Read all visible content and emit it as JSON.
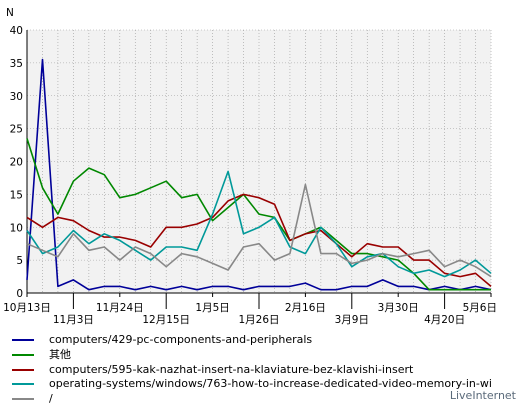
{
  "chart_data": {
    "type": "line",
    "ylabel": "N",
    "ylim": [
      0,
      40
    ],
    "yticks": [
      0,
      5,
      10,
      15,
      20,
      25,
      30,
      35,
      40
    ],
    "grid": true,
    "legend_position": "bottom",
    "x": [
      "10月13日",
      "",
      "",
      "11月3日",
      "",
      "",
      "11月24日",
      "",
      "",
      "12月15日",
      "",
      "",
      "1月5日",
      "",
      "",
      "1月26日",
      "",
      "",
      "2月16日",
      "",
      "",
      "3月9日",
      "",
      "",
      "3月30日",
      "",
      "",
      "4月20日",
      "",
      "",
      "5月6日"
    ],
    "xtick_labels": [
      {
        "index": 0,
        "label": "10月13日",
        "row": 0
      },
      {
        "index": 3,
        "label": "11月3日",
        "row": 1
      },
      {
        "index": 6,
        "label": "11月24日",
        "row": 0
      },
      {
        "index": 9,
        "label": "12月15日",
        "row": 1
      },
      {
        "index": 12,
        "label": "1月5日",
        "row": 0
      },
      {
        "index": 15,
        "label": "1月26日",
        "row": 1
      },
      {
        "index": 18,
        "label": "2月16日",
        "row": 0
      },
      {
        "index": 21,
        "label": "3月9日",
        "row": 1
      },
      {
        "index": 24,
        "label": "3月30日",
        "row": 0
      },
      {
        "index": 27,
        "label": "4月20日",
        "row": 1
      },
      {
        "index": 30,
        "label": "5月6日",
        "row": 0
      }
    ],
    "series": [
      {
        "name": "computers/429-pc-components-and-peripherals",
        "color": "#000099",
        "values": [
          2,
          35.5,
          1,
          2,
          0.5,
          1,
          1,
          0.5,
          1,
          0.5,
          1,
          0.5,
          1,
          1,
          0.5,
          1,
          1,
          1,
          1.5,
          0.5,
          0.5,
          1,
          1,
          2,
          1,
          1,
          0.5,
          1,
          0.5,
          1,
          0.5
        ]
      },
      {
        "name": "其他",
        "color": "#008800",
        "values": [
          23.5,
          16,
          12,
          17,
          19,
          18,
          14.5,
          15,
          16,
          17,
          14.5,
          15,
          11,
          13,
          15,
          12,
          11.5,
          8,
          9,
          10,
          8,
          6,
          6,
          5.5,
          5,
          3,
          0.5,
          0.5,
          0.5,
          0.5,
          0.5
        ]
      },
      {
        "name": "computers/595-kak-nazhat-insert-na-klaviature-bez-klavishi-insert",
        "color": "#990000",
        "values": [
          11.5,
          10,
          11.5,
          11,
          9.5,
          8.5,
          8.5,
          8,
          7,
          10,
          10,
          10.5,
          11.5,
          14,
          15,
          14.5,
          13.5,
          8,
          9,
          9.5,
          7.5,
          5.5,
          7.5,
          7,
          7,
          5,
          5,
          3,
          2.5,
          3,
          1
        ]
      },
      {
        "name": "operating-systems/windows/763-how-to-increase-dedicated-video-memory-in-wi",
        "color": "#009999",
        "values": [
          9.5,
          6,
          7,
          9.5,
          7.5,
          9,
          8,
          6.5,
          5,
          7,
          7,
          6.5,
          12,
          18.5,
          9,
          10,
          11.5,
          7,
          6,
          10,
          7.5,
          4,
          5.5,
          6,
          4,
          3,
          3.5,
          2.5,
          3.5,
          5,
          3
        ]
      },
      {
        "name": "/",
        "color": "#888888",
        "values": [
          7.5,
          6.5,
          5.5,
          9,
          6.5,
          7,
          5,
          7,
          6,
          4,
          6,
          5.5,
          4.5,
          3.5,
          7,
          7.5,
          5,
          6,
          16.5,
          6,
          6,
          4.5,
          5,
          6,
          5.5,
          6,
          6.5,
          4,
          5,
          4,
          2.5
        ]
      }
    ]
  },
  "credit": "LiveInternet"
}
